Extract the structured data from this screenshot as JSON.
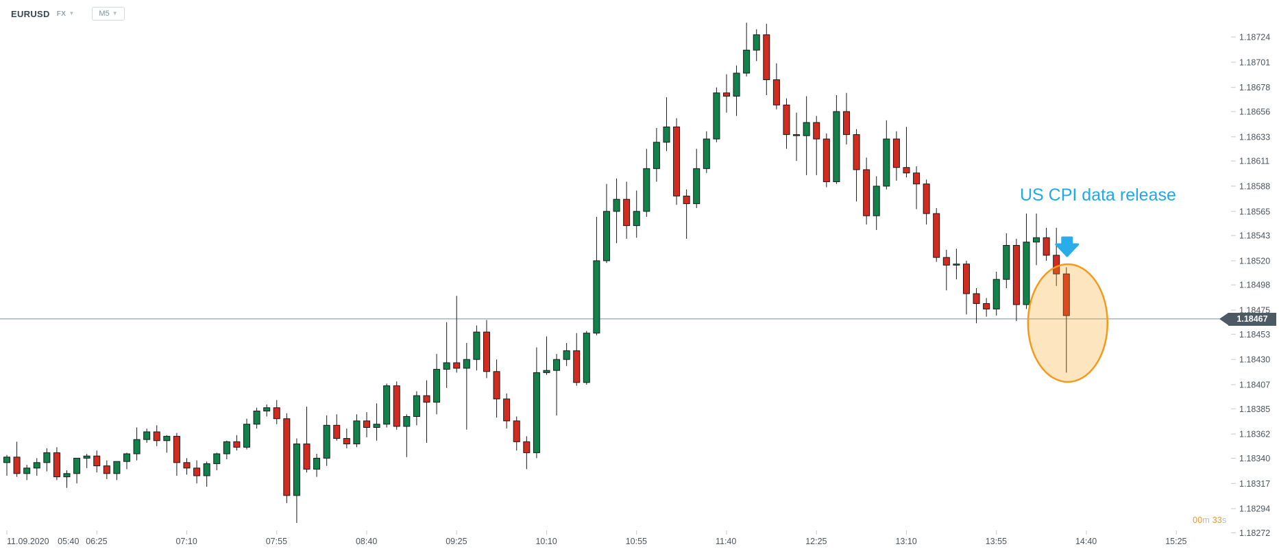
{
  "header": {
    "symbol": "EURUSD",
    "market": "FX",
    "timeframe": "M5"
  },
  "annotation": {
    "text": "US CPI data release",
    "color": "#1FA9EA",
    "arrow_color": "#29ADE9"
  },
  "price_line": {
    "value": "1.18467",
    "line_color": "#78909C",
    "badge_bg": "#4C5A64"
  },
  "countdown": {
    "minutes": "00",
    "minutes_unit": "m",
    "seconds": "33",
    "seconds_unit": "s",
    "accent_color": "#F7941E",
    "unit_color": "#B4BBC1"
  },
  "price_axis": {
    "labels": [
      "1.18724",
      "1.18701",
      "1.18678",
      "1.18656",
      "1.18633",
      "1.18611",
      "1.18588",
      "1.18565",
      "1.18543",
      "1.18520",
      "1.18498",
      "1.18475",
      "1.18453",
      "1.18430",
      "1.18407",
      "1.18385",
      "1.18362",
      "1.18340",
      "1.18317",
      "1.18294",
      "1.18272"
    ],
    "text_color": "#4A545B",
    "tick_color": "#C2C9CE"
  },
  "time_axis": {
    "date_label": "11.09.2020",
    "labels": [
      "05:40",
      "06:25",
      "07:10",
      "07:55",
      "08:40",
      "09:25",
      "10:10",
      "10:55",
      "11:40",
      "12:25",
      "13:10",
      "13:55",
      "14:40",
      "15:25"
    ],
    "text_color": "#4A545B",
    "tick_color": "#C2C9CE"
  },
  "chart_data": {
    "type": "candlestick",
    "symbol": "EURUSD",
    "interval": "5m",
    "date": "11.09.2020",
    "ylim": [
      1.18272,
      1.18724
    ],
    "grid": false,
    "up_color": "#12824B",
    "down_color": "#D22B20",
    "outline_color": "#17181A",
    "highlight_ellipse_color": "#F5991B",
    "highlight_ellipse_fill": "#F7A21E",
    "current_price": 1.18467,
    "candles": [
      [
        "05:40",
        1.18336,
        1.18343,
        1.18324,
        1.18341
      ],
      [
        "05:45",
        1.18341,
        1.18355,
        1.18323,
        1.18326
      ],
      [
        "05:50",
        1.18326,
        1.18334,
        1.1832,
        1.18331
      ],
      [
        "05:55",
        1.18331,
        1.1834,
        1.18324,
        1.18336
      ],
      [
        "06:00",
        1.18336,
        1.18349,
        1.18328,
        1.18345
      ],
      [
        "06:05",
        1.18345,
        1.1835,
        1.1832,
        1.18323
      ],
      [
        "06:10",
        1.18323,
        1.18329,
        1.18313,
        1.18326
      ],
      [
        "06:15",
        1.18326,
        1.18337,
        1.18317,
        1.1834
      ],
      [
        "06:20",
        1.1834,
        1.18344,
        1.18331,
        1.18342
      ],
      [
        "06:25",
        1.18342,
        1.18347,
        1.18327,
        1.18333
      ],
      [
        "06:30",
        1.18333,
        1.18338,
        1.18321,
        1.18326
      ],
      [
        "06:35",
        1.18326,
        1.18332,
        1.1832,
        1.18337
      ],
      [
        "06:40",
        1.18337,
        1.18345,
        1.1833,
        1.18344
      ],
      [
        "06:45",
        1.18344,
        1.18368,
        1.18338,
        1.18357
      ],
      [
        "06:50",
        1.18357,
        1.18367,
        1.18354,
        1.18364
      ],
      [
        "06:55",
        1.18364,
        1.1837,
        1.18351,
        1.18356
      ],
      [
        "07:00",
        1.18356,
        1.18361,
        1.18345,
        1.1836
      ],
      [
        "07:05",
        1.1836,
        1.18363,
        1.18324,
        1.18336
      ],
      [
        "07:10",
        1.18336,
        1.1834,
        1.18325,
        1.18331
      ],
      [
        "07:15",
        1.18331,
        1.18338,
        1.18317,
        1.18324
      ],
      [
        "07:20",
        1.18324,
        1.18337,
        1.18314,
        1.18335
      ],
      [
        "07:25",
        1.18335,
        1.18345,
        1.18329,
        1.18344
      ],
      [
        "07:30",
        1.18344,
        1.18356,
        1.18339,
        1.18355
      ],
      [
        "07:35",
        1.18355,
        1.18361,
        1.18347,
        1.1835
      ],
      [
        "07:40",
        1.1835,
        1.18376,
        1.18348,
        1.18371
      ],
      [
        "07:45",
        1.18371,
        1.18386,
        1.18367,
        1.18383
      ],
      [
        "07:50",
        1.18383,
        1.18389,
        1.18378,
        1.18386
      ],
      [
        "07:55",
        1.18386,
        1.18393,
        1.18371,
        1.18376
      ],
      [
        "08:00",
        1.18376,
        1.18381,
        1.18299,
        1.18306
      ],
      [
        "08:05",
        1.18306,
        1.18358,
        1.18281,
        1.18353
      ],
      [
        "08:10",
        1.18353,
        1.18387,
        1.18327,
        1.1833
      ],
      [
        "08:15",
        1.1833,
        1.18344,
        1.18323,
        1.1834
      ],
      [
        "08:20",
        1.1834,
        1.18379,
        1.18333,
        1.1837
      ],
      [
        "08:25",
        1.1837,
        1.1838,
        1.18356,
        1.18358
      ],
      [
        "08:30",
        1.18358,
        1.18367,
        1.18349,
        1.18353
      ],
      [
        "08:35",
        1.18353,
        1.1838,
        1.1835,
        1.18374
      ],
      [
        "08:40",
        1.18374,
        1.18382,
        1.18359,
        1.18368
      ],
      [
        "08:45",
        1.18368,
        1.1839,
        1.18356,
        1.18371
      ],
      [
        "08:50",
        1.18371,
        1.18408,
        1.18368,
        1.18406
      ],
      [
        "08:55",
        1.18406,
        1.1841,
        1.18366,
        1.18369
      ],
      [
        "09:00",
        1.18369,
        1.1838,
        1.18341,
        1.18378
      ],
      [
        "09:05",
        1.18378,
        1.18401,
        1.1837,
        1.18397
      ],
      [
        "09:10",
        1.18397,
        1.18411,
        1.18354,
        1.18391
      ],
      [
        "09:15",
        1.18391,
        1.18435,
        1.1838,
        1.18421
      ],
      [
        "09:20",
        1.18421,
        1.18464,
        1.18404,
        1.18427
      ],
      [
        "09:25",
        1.18427,
        1.18488,
        1.18418,
        1.18422
      ],
      [
        "09:30",
        1.18422,
        1.18445,
        1.18366,
        1.1843
      ],
      [
        "09:35",
        1.1843,
        1.18461,
        1.1842,
        1.18455
      ],
      [
        "09:40",
        1.18455,
        1.18466,
        1.18413,
        1.18419
      ],
      [
        "09:45",
        1.18419,
        1.1843,
        1.18377,
        1.18394
      ],
      [
        "09:50",
        1.18394,
        1.18399,
        1.18367,
        1.18374
      ],
      [
        "09:55",
        1.18374,
        1.18378,
        1.18347,
        1.18355
      ],
      [
        "10:00",
        1.18355,
        1.1836,
        1.1833,
        1.18345
      ],
      [
        "10:05",
        1.18345,
        1.18441,
        1.1834,
        1.18418
      ],
      [
        "10:10",
        1.18418,
        1.18451,
        1.18416,
        1.1842
      ],
      [
        "10:15",
        1.1842,
        1.18435,
        1.18379,
        1.1843
      ],
      [
        "10:20",
        1.1843,
        1.18445,
        1.18424,
        1.18438
      ],
      [
        "10:25",
        1.18438,
        1.18454,
        1.18406,
        1.18409
      ],
      [
        "10:30",
        1.18409,
        1.18456,
        1.18407,
        1.18454
      ],
      [
        "10:35",
        1.18454,
        1.1856,
        1.18452,
        1.1852
      ],
      [
        "10:40",
        1.1852,
        1.1859,
        1.18518,
        1.18565
      ],
      [
        "10:45",
        1.18565,
        1.18595,
        1.18536,
        1.18576
      ],
      [
        "10:50",
        1.18576,
        1.18592,
        1.1854,
        1.18552
      ],
      [
        "10:55",
        1.18552,
        1.18584,
        1.18541,
        1.18565
      ],
      [
        "11:00",
        1.18565,
        1.18622,
        1.1856,
        1.18604
      ],
      [
        "11:05",
        1.18604,
        1.18641,
        1.18592,
        1.18628
      ],
      [
        "11:10",
        1.18628,
        1.18669,
        1.1862,
        1.18642
      ],
      [
        "11:15",
        1.18642,
        1.1865,
        1.18571,
        1.18579
      ],
      [
        "11:20",
        1.18579,
        1.18585,
        1.1854,
        1.18572
      ],
      [
        "11:25",
        1.18572,
        1.18622,
        1.18568,
        1.18604
      ],
      [
        "11:30",
        1.18604,
        1.18638,
        1.186,
        1.18631
      ],
      [
        "11:35",
        1.18631,
        1.18678,
        1.18628,
        1.18673
      ],
      [
        "11:40",
        1.18673,
        1.1869,
        1.18655,
        1.1867
      ],
      [
        "11:45",
        1.1867,
        1.18698,
        1.18652,
        1.18691
      ],
      [
        "11:50",
        1.18691,
        1.18737,
        1.18688,
        1.18712
      ],
      [
        "11:55",
        1.18712,
        1.18731,
        1.18702,
        1.18726
      ],
      [
        "12:00",
        1.18726,
        1.18736,
        1.18671,
        1.18685
      ],
      [
        "12:05",
        1.18685,
        1.187,
        1.18658,
        1.18662
      ],
      [
        "12:10",
        1.18662,
        1.18668,
        1.18622,
        1.18635
      ],
      [
        "12:15",
        1.18635,
        1.18655,
        1.18611,
        1.18634
      ],
      [
        "12:20",
        1.18634,
        1.1867,
        1.18598,
        1.18646
      ],
      [
        "12:25",
        1.18646,
        1.18652,
        1.18598,
        1.18631
      ],
      [
        "12:30",
        1.18631,
        1.18636,
        1.18587,
        1.18592
      ],
      [
        "12:35",
        1.18592,
        1.18671,
        1.1859,
        1.18656
      ],
      [
        "12:40",
        1.18656,
        1.18673,
        1.18626,
        1.18635
      ],
      [
        "12:45",
        1.18635,
        1.1864,
        1.18574,
        1.18603
      ],
      [
        "12:50",
        1.18603,
        1.18614,
        1.18553,
        1.18561
      ],
      [
        "12:55",
        1.18561,
        1.18597,
        1.18548,
        1.18588
      ],
      [
        "13:00",
        1.18588,
        1.18648,
        1.18585,
        1.18631
      ],
      [
        "13:05",
        1.18631,
        1.18638,
        1.18593,
        1.18605
      ],
      [
        "13:10",
        1.18605,
        1.18642,
        1.18596,
        1.186
      ],
      [
        "13:15",
        1.186,
        1.18606,
        1.18567,
        1.1859
      ],
      [
        "13:20",
        1.1859,
        1.18594,
        1.18553,
        1.18563
      ],
      [
        "13:25",
        1.18563,
        1.18568,
        1.18519,
        1.18523
      ],
      [
        "13:30",
        1.18523,
        1.1853,
        1.18493,
        1.18516
      ],
      [
        "13:35",
        1.18516,
        1.18531,
        1.18503,
        1.18517
      ],
      [
        "13:40",
        1.18517,
        1.1852,
        1.18471,
        1.1849
      ],
      [
        "13:45",
        1.1849,
        1.18495,
        1.18463,
        1.18481
      ],
      [
        "13:50",
        1.18481,
        1.18486,
        1.18469,
        1.18476
      ],
      [
        "13:55",
        1.18476,
        1.1851,
        1.1847,
        1.18503
      ],
      [
        "14:00",
        1.18503,
        1.18545,
        1.18495,
        1.18534
      ],
      [
        "14:05",
        1.18534,
        1.1854,
        1.18465,
        1.1848
      ],
      [
        "14:10",
        1.1848,
        1.18563,
        1.18476,
        1.18537
      ],
      [
        "14:15",
        1.18537,
        1.18563,
        1.18516,
        1.18541
      ],
      [
        "14:20",
        1.18541,
        1.1855,
        1.1852,
        1.18525
      ],
      [
        "14:25",
        1.18525,
        1.1855,
        1.18497,
        1.18508
      ],
      [
        "14:30",
        1.18508,
        1.18514,
        1.18418,
        1.1847
      ]
    ]
  }
}
